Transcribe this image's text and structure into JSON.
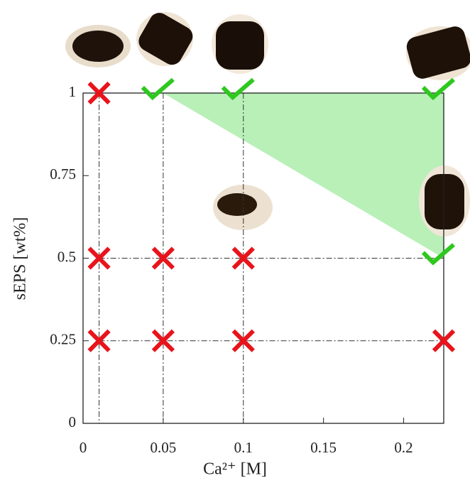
{
  "chart_data": {
    "type": "scatter",
    "xlabel": "Ca²⁺ [M]",
    "ylabel": "sEPS [wt%]",
    "xlim": [
      0,
      0.225
    ],
    "ylim": [
      0,
      1
    ],
    "xticks": [
      0,
      0.05,
      0.1,
      0.15,
      0.2
    ],
    "yticks": [
      0,
      0.25,
      0.5,
      0.75,
      1
    ],
    "region": {
      "color": "#b8f0b8",
      "x": [
        0.05,
        0.225,
        0.225
      ],
      "y": [
        1,
        1,
        0.5
      ]
    },
    "series": [
      {
        "marker": "cross",
        "color": "#e8141c",
        "x": [
          0.01,
          0.01,
          0.05,
          0.1,
          0.01,
          0.05,
          0.1,
          0.225
        ],
        "values": [
          1,
          0.5,
          0.5,
          0.5,
          0.25,
          0.25,
          0.25,
          0.25
        ]
      },
      {
        "marker": "check",
        "color": "#2ec81e",
        "x": [
          0.05,
          0.1,
          0.225,
          0.225
        ],
        "values": [
          1,
          1,
          1,
          0.5
        ]
      }
    ]
  }
}
